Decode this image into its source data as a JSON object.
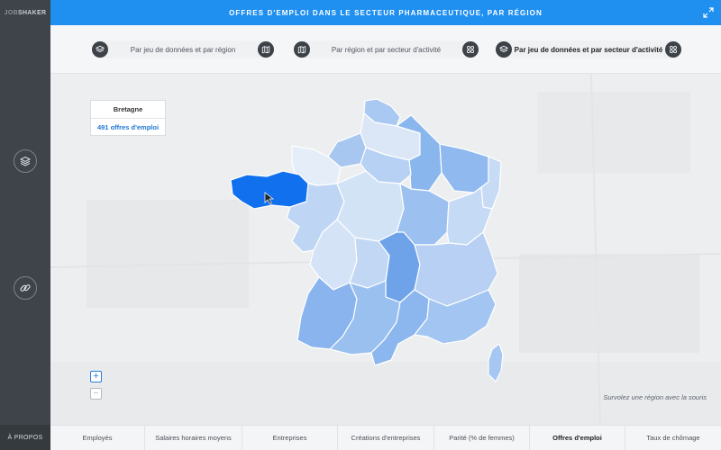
{
  "app": {
    "logo_part1": "JOB",
    "logo_part2": "SHAKER",
    "about": "À PROPOS"
  },
  "header": {
    "title": "OFFRES D'EMPLOI DANS LE SECTEUR PHARMACEUTIQUE, PAR RÉGION"
  },
  "selectors": [
    {
      "label": "Par jeu de données et par région",
      "left_icon": "layers-icon",
      "right_icon": "map-icon",
      "active": false
    },
    {
      "label": "Par région et par secteur d'activité",
      "left_icon": "map-icon",
      "right_icon": "grid-icon",
      "active": false
    },
    {
      "label": "Par jeu de données et par secteur d'activité",
      "left_icon": "layers-icon",
      "right_icon": "grid-icon",
      "active": true
    }
  ],
  "sidebar": {
    "buttons": [
      "layers-icon",
      "link-icon"
    ]
  },
  "infobox": {
    "region": "Bretagne",
    "count": "491 offres d'emploi"
  },
  "zoom": {
    "in": "+",
    "out": "−"
  },
  "hint": "Survolez une région avec la souris",
  "colors": {
    "accent": "#1f8ff0",
    "selected_region": "#1170ee",
    "sidebar": "#3e444a"
  },
  "tabs": [
    {
      "label": "Employés",
      "active": false
    },
    {
      "label": "Salaires horaires moyens",
      "active": false
    },
    {
      "label": "Entreprises",
      "active": false
    },
    {
      "label": "Créations d'entreprises",
      "active": false
    },
    {
      "label": "Parité (% de femmes)",
      "active": false
    },
    {
      "label": "Offres d'emploi",
      "active": true
    },
    {
      "label": "Taux de chômage",
      "active": false
    }
  ],
  "map": {
    "selected": "Bretagne"
  }
}
